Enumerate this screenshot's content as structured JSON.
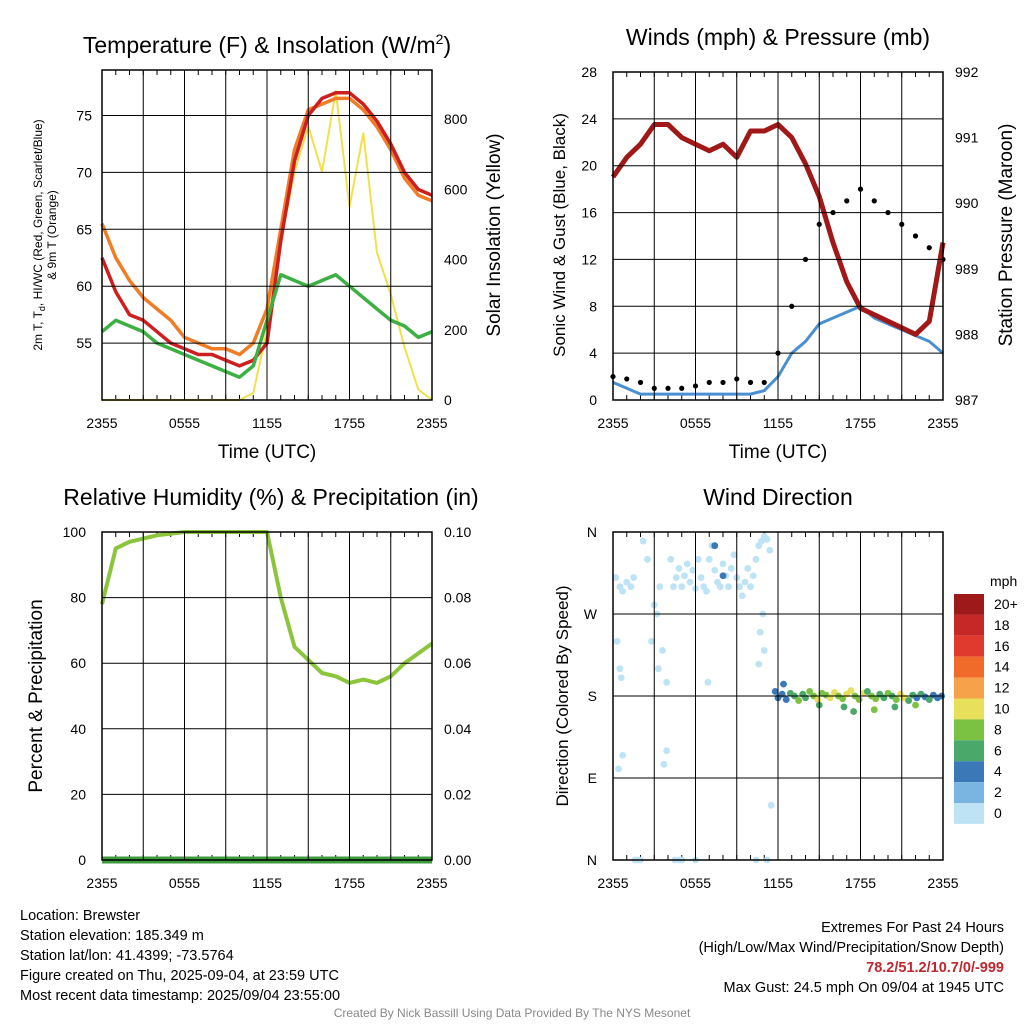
{
  "chart_data": [
    {
      "type": "line",
      "title": "Temperature (F) & Insolation (W/m2)",
      "title_main": "Temperature (F) & Insolation (W/m",
      "title_sup": "2",
      "title_end": ")",
      "xlabel": "Time (UTC)",
      "ylabel_left_line1": "2m T, T",
      "ylabel_left_sub": "d",
      "ylabel_left_line1_rest": ", HI/WC (Red, Green, Scarlet/Blue)",
      "ylabel_left_line2": "& 9m T (Orange)",
      "ylabel_right": "Solar Insolation (Yellow)",
      "x_ticks": [
        "2355",
        "0555",
        "1155",
        "1755",
        "2355"
      ],
      "ylim_left": [
        50,
        79
      ],
      "yticks_left": [
        55,
        60,
        65,
        70,
        75
      ],
      "ylim_right": [
        0,
        940
      ],
      "yticks_right": [
        0,
        200,
        400,
        600,
        800
      ],
      "hours": [
        0,
        1,
        2,
        3,
        4,
        5,
        6,
        7,
        8,
        9,
        10,
        11,
        12,
        13,
        14,
        15,
        16,
        17,
        18,
        19,
        20,
        21,
        22,
        23,
        24
      ],
      "series": [
        {
          "key": "temp",
          "color": "#cc2020",
          "values": [
            62.5,
            59.5,
            57.5,
            57,
            56,
            55,
            54.5,
            54,
            54,
            53.5,
            53,
            53.5,
            55,
            64,
            71,
            75,
            76.5,
            77,
            77,
            76,
            74.5,
            72.5,
            70,
            68.5,
            68
          ]
        },
        {
          "key": "temp9m",
          "color": "#f07c26",
          "values": [
            65.5,
            62.5,
            60.5,
            59,
            58,
            57,
            55.5,
            55,
            54.5,
            54.5,
            54,
            55,
            58,
            65,
            72,
            75.5,
            76,
            76.5,
            76.5,
            75.5,
            74,
            72,
            69.5,
            68,
            67.5
          ]
        },
        {
          "key": "dewpoint",
          "color": "#3cb043",
          "values": [
            56,
            57,
            56.5,
            56,
            55,
            54.5,
            54,
            53.5,
            53,
            52.5,
            52,
            53,
            57,
            61,
            60.5,
            60,
            60.5,
            61,
            60,
            59,
            58,
            57,
            56.5,
            55.5,
            56
          ]
        },
        {
          "key": "insolation",
          "color": "#f2e04a",
          "axis": "right",
          "values": [
            0,
            0,
            0,
            0,
            0,
            0,
            0,
            0,
            0,
            0,
            0,
            20,
            200,
            450,
            650,
            780,
            650,
            880,
            550,
            760,
            420,
            300,
            150,
            30,
            0
          ]
        }
      ]
    },
    {
      "type": "scatter",
      "title": "Winds (mph) & Pressure (mb)",
      "xlabel": "Time (UTC)",
      "ylabel_left": "Sonic Wind & Gust (Blue, Black)",
      "ylabel_right": "Station Pressure (Maroon)",
      "x_ticks": [
        "2355",
        "0555",
        "1155",
        "1755",
        "2355"
      ],
      "ylim_left": [
        0,
        28
      ],
      "yticks_left": [
        0,
        4,
        8,
        12,
        16,
        20,
        24,
        28
      ],
      "ylim_right": [
        987,
        992
      ],
      "yticks_right": [
        987,
        988,
        989,
        990,
        991,
        992
      ],
      "hours": [
        0,
        1,
        2,
        3,
        4,
        5,
        6,
        7,
        8,
        9,
        10,
        11,
        12,
        13,
        14,
        15,
        16,
        17,
        18,
        19,
        20,
        21,
        22,
        23,
        24
      ],
      "series": [
        {
          "key": "wind",
          "color": "#4a90d0",
          "values": [
            1.5,
            1,
            0.5,
            0.5,
            0.5,
            0.5,
            0.5,
            0.5,
            0.5,
            0.5,
            0.5,
            0.8,
            2,
            4,
            5,
            6.5,
            7,
            7.5,
            8,
            7,
            6.5,
            6,
            5.5,
            5,
            4
          ]
        },
        {
          "key": "gust",
          "color": "#000000",
          "values": [
            2,
            1.8,
            1.5,
            1,
            1,
            1,
            1.2,
            1.5,
            1.5,
            1.8,
            1.5,
            1.5,
            4,
            8,
            12,
            15,
            16,
            17,
            18,
            17,
            16,
            15,
            14,
            13,
            12
          ]
        },
        {
          "key": "pressure",
          "color": "#a01818",
          "axis": "right",
          "values": [
            990.4,
            990.7,
            990.9,
            991.2,
            991.2,
            991,
            990.9,
            990.8,
            990.9,
            990.7,
            991.1,
            991.1,
            991.2,
            991.0,
            990.6,
            990.1,
            989.4,
            988.8,
            988.4,
            988.3,
            988.2,
            988.1,
            988.0,
            988.2,
            989.4
          ]
        }
      ]
    },
    {
      "type": "line",
      "title": "Relative Humidity (%) & Precipitation (in)",
      "xlabel": "",
      "ylabel_left": "Percent & Precipitation",
      "x_ticks": [
        "2355",
        "0555",
        "1155",
        "1755",
        "2355"
      ],
      "ylim_left": [
        0,
        100
      ],
      "yticks_left": [
        0,
        20,
        40,
        60,
        80,
        100
      ],
      "ylim_right": [
        0,
        0.1
      ],
      "yticks_right": [
        "0.00",
        "0.02",
        "0.04",
        "0.06",
        "0.08",
        "0.10"
      ],
      "hours": [
        0,
        1,
        2,
        3,
        4,
        5,
        6,
        7,
        8,
        9,
        10,
        11,
        12,
        13,
        14,
        15,
        16,
        17,
        18,
        19,
        20,
        21,
        22,
        23,
        24
      ],
      "series": [
        {
          "key": "rh",
          "color": "#8cc43c",
          "values": [
            78,
            95,
            97,
            98,
            99,
            99.5,
            100,
            100,
            100,
            100,
            100,
            100,
            100,
            80,
            65,
            61,
            57,
            56,
            54,
            55,
            54,
            56,
            60,
            63,
            66
          ]
        },
        {
          "key": "precip",
          "color": "#3e9a3e",
          "axis": "right",
          "values": [
            0,
            0,
            0,
            0,
            0,
            0,
            0,
            0,
            0,
            0,
            0,
            0,
            0,
            0,
            0,
            0,
            0,
            0,
            0,
            0,
            0,
            0,
            0,
            0,
            0
          ]
        }
      ]
    },
    {
      "type": "scatter",
      "title": "Wind Direction",
      "xlabel": "",
      "ylabel_left": "Direction (Colored By Speed)",
      "x_ticks": [
        "2355",
        "0555",
        "1155",
        "1755",
        "2355"
      ],
      "y_tick_labels": [
        "N",
        "E",
        "S",
        "W",
        "N"
      ],
      "y_ticks_deg": [
        0,
        90,
        180,
        270,
        360
      ],
      "legend_title": "mph",
      "legend_labels": [
        "20+",
        "18",
        "16",
        "14",
        "12",
        "10",
        "8",
        "6",
        "4",
        "2",
        "0"
      ],
      "legend_colors": [
        "#9e1a1a",
        "#c62828",
        "#e0392d",
        "#f06a2a",
        "#f6a24a",
        "#e8e05a",
        "#7cc242",
        "#4aa86a",
        "#3a78b8",
        "#7ab4e0",
        "#bde3f4"
      ],
      "points": [
        [
          0.2,
          310,
          0
        ],
        [
          0.5,
          300,
          0
        ],
        [
          0.7,
          295,
          0
        ],
        [
          1.0,
          305,
          0
        ],
        [
          1.3,
          300,
          0
        ],
        [
          1.5,
          310,
          0
        ],
        [
          0.3,
          240,
          0
        ],
        [
          0.6,
          200,
          0
        ],
        [
          0.4,
          100,
          0
        ],
        [
          0.7,
          115,
          0
        ],
        [
          0.5,
          210,
          0
        ],
        [
          2.2,
          350,
          0
        ],
        [
          2.5,
          330,
          0
        ],
        [
          2.8,
          240,
          0
        ],
        [
          3.0,
          280,
          0
        ],
        [
          3.2,
          270,
          0
        ],
        [
          3.4,
          300,
          0
        ],
        [
          3.3,
          210,
          0
        ],
        [
          3.6,
          230,
          0
        ],
        [
          3.9,
          195,
          0
        ],
        [
          3.7,
          105,
          0
        ],
        [
          3.9,
          120,
          0
        ],
        [
          4.2,
          330,
          0
        ],
        [
          4.4,
          300,
          0
        ],
        [
          4.6,
          310,
          0
        ],
        [
          4.8,
          320,
          0
        ],
        [
          5.0,
          300,
          0
        ],
        [
          5.2,
          312,
          0
        ],
        [
          5.4,
          325,
          0
        ],
        [
          5.6,
          305,
          0
        ],
        [
          5.8,
          318,
          0
        ],
        [
          6.0,
          298,
          0
        ],
        [
          6.2,
          330,
          0
        ],
        [
          6.4,
          310,
          0
        ],
        [
          6.6,
          300,
          0
        ],
        [
          6.8,
          295,
          0
        ],
        [
          7.0,
          330,
          0
        ],
        [
          7.2,
          345,
          0
        ],
        [
          7.4,
          318,
          0
        ],
        [
          7.6,
          305,
          0
        ],
        [
          7.8,
          300,
          0
        ],
        [
          8.0,
          325,
          0
        ],
        [
          8.2,
          312,
          0
        ],
        [
          8.4,
          300,
          0
        ],
        [
          8.6,
          320,
          0
        ],
        [
          8.8,
          335,
          0
        ],
        [
          9.0,
          310,
          0
        ],
        [
          9.2,
          300,
          0
        ],
        [
          9.4,
          290,
          0
        ],
        [
          9.6,
          305,
          0
        ],
        [
          9.8,
          320,
          0
        ],
        [
          10.0,
          300,
          0
        ],
        [
          10.2,
          312,
          0
        ],
        [
          10.4,
          330,
          0
        ],
        [
          10.6,
          345,
          0
        ],
        [
          10.8,
          350,
          0
        ],
        [
          11.0,
          355,
          0
        ],
        [
          11.2,
          352,
          0
        ],
        [
          11.4,
          340,
          0
        ],
        [
          10.7,
          250,
          0
        ],
        [
          10.9,
          270,
          0
        ],
        [
          11.0,
          230,
          0
        ],
        [
          10.6,
          215,
          0
        ],
        [
          6.9,
          195,
          0
        ],
        [
          11.5,
          60,
          0
        ],
        [
          1.6,
          0,
          0
        ],
        [
          1.8,
          0,
          0
        ],
        [
          2.0,
          0,
          0
        ],
        [
          4.5,
          0,
          0
        ],
        [
          4.8,
          0,
          0
        ],
        [
          5.0,
          0,
          0
        ],
        [
          6.0,
          0,
          0
        ],
        [
          10.4,
          0,
          0
        ],
        [
          11.2,
          0,
          0
        ],
        [
          7.4,
          345,
          3
        ],
        [
          8.0,
          312,
          3
        ],
        [
          11.8,
          185,
          3
        ],
        [
          12.0,
          178,
          4
        ],
        [
          12.3,
          182,
          3
        ],
        [
          12.6,
          176,
          4
        ],
        [
          12.9,
          183,
          5
        ],
        [
          13.2,
          180,
          6
        ],
        [
          13.5,
          175,
          7
        ],
        [
          13.8,
          182,
          5
        ],
        [
          14.0,
          178,
          6
        ],
        [
          14.3,
          185,
          7
        ],
        [
          14.6,
          180,
          8
        ],
        [
          14.9,
          176,
          9
        ],
        [
          15.2,
          183,
          8
        ],
        [
          15.5,
          181,
          7
        ],
        [
          15.8,
          178,
          9
        ],
        [
          16.1,
          184,
          10
        ],
        [
          16.4,
          180,
          8
        ],
        [
          16.7,
          177,
          7
        ],
        [
          17.0,
          182,
          9
        ],
        [
          17.3,
          186,
          10
        ],
        [
          17.6,
          180,
          8
        ],
        [
          17.9,
          176,
          7
        ],
        [
          18.2,
          183,
          9
        ],
        [
          18.5,
          185,
          6
        ],
        [
          18.8,
          180,
          8
        ],
        [
          19.1,
          177,
          7
        ],
        [
          19.4,
          182,
          6
        ],
        [
          19.7,
          178,
          5
        ],
        [
          20.0,
          183,
          7
        ],
        [
          20.3,
          180,
          6
        ],
        [
          20.6,
          176,
          8
        ],
        [
          20.9,
          182,
          10
        ],
        [
          21.2,
          178,
          9
        ],
        [
          21.5,
          175,
          6
        ],
        [
          21.8,
          181,
          5
        ],
        [
          22.1,
          178,
          4
        ],
        [
          22.4,
          182,
          5
        ],
        [
          22.7,
          179,
          4
        ],
        [
          23.0,
          176,
          5
        ],
        [
          23.3,
          181,
          4
        ],
        [
          23.6,
          178,
          3
        ],
        [
          23.9,
          180,
          4
        ],
        [
          12.4,
          193,
          3
        ],
        [
          15.0,
          170,
          6
        ],
        [
          16.8,
          168,
          5
        ],
        [
          17.5,
          163,
          6
        ],
        [
          19.0,
          165,
          7
        ],
        [
          20.5,
          168,
          5
        ],
        [
          22.0,
          170,
          8
        ]
      ]
    }
  ],
  "footer": {
    "location": "Location: Brewster",
    "elevation": "Station elevation: 185.349 m",
    "latlon": "Station lat/lon: 41.4399; -73.5764",
    "created": "Figure created on Thu, 2025-09-04, at 23:59 UTC",
    "recent": "Most recent data timestamp: 2025/09/04 23:55:00"
  },
  "extremes": {
    "title": "Extremes For Past 24 Hours",
    "subtitle": "(High/Low/Max Wind/Precipitation/Snow Depth)",
    "values": "78.2/51.2/10.7/0/-999",
    "max_gust": "Max Gust: 24.5 mph On 09/04 at 1945 UTC"
  },
  "credit": "Created By Nick Bassill Using Data Provided By The NYS Mesonet"
}
